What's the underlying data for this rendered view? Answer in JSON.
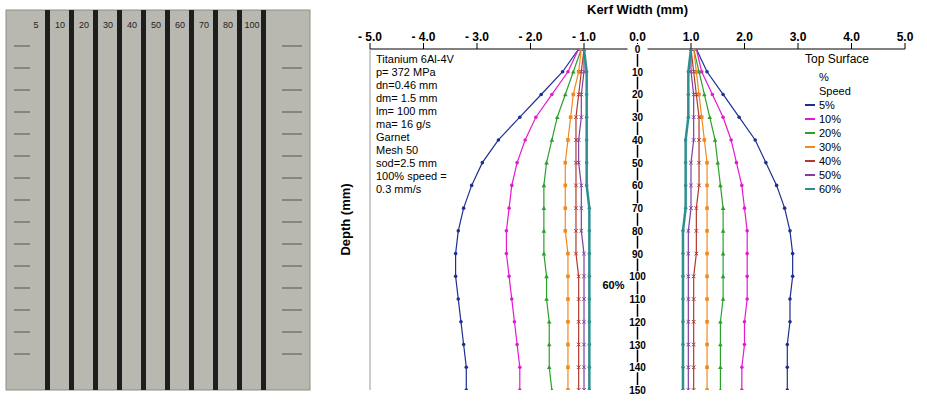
{
  "chart_data": {
    "type": "line",
    "x_label": "Kerf Width (mm)",
    "y_label": "Depth (mm)",
    "xlim": [
      -5,
      5
    ],
    "xticks": [
      {
        "value": -5,
        "label": "- 5.0"
      },
      {
        "value": -4,
        "label": "- 4.0"
      },
      {
        "value": -3,
        "label": "- 3.0"
      },
      {
        "value": -2,
        "label": "- 2.0"
      },
      {
        "value": -1,
        "label": "- 1.0"
      },
      {
        "value": 0,
        "label": "0.0"
      },
      {
        "value": 1,
        "label": "1.0"
      },
      {
        "value": 2,
        "label": "2.0"
      },
      {
        "value": 3,
        "label": "3.0"
      },
      {
        "value": 4,
        "label": "4.0"
      },
      {
        "value": 5,
        "label": "5.0"
      }
    ],
    "ylim": [
      0,
      150
    ],
    "yticks": [
      0,
      10,
      20,
      30,
      40,
      50,
      60,
      70,
      80,
      90,
      100,
      110,
      120,
      130,
      140,
      150
    ],
    "grid": false,
    "legend": "upper right",
    "text_box": [
      "Titanium 6Al-4V",
      "p= 372 MPa",
      "dn=0.46 mm",
      "dm= 1.5 mm",
      "lm= 100 mm",
      "ma= 16 g/s",
      "Garnet",
      "Mesh 50",
      "sod=2.5 mm",
      "100% speed =",
      "0.3 mm/s"
    ],
    "top_label": "Top Surface",
    "legend_title": [
      "%",
      "Speed"
    ],
    "annotations": [
      {
        "text": "60%",
        "x": -0.45,
        "y": 104
      }
    ],
    "depth": [
      0,
      10,
      20,
      30,
      40,
      50,
      60,
      70,
      80,
      90,
      100,
      110,
      120,
      130,
      140,
      150
    ],
    "series": [
      {
        "name": "5%",
        "color": "#1f2f8f",
        "marker": "circle",
        "left": [
          -1.1,
          -1.4,
          -1.8,
          -2.2,
          -2.6,
          -2.9,
          -3.1,
          -3.25,
          -3.35,
          -3.4,
          -3.4,
          -3.35,
          -3.3,
          -3.25,
          -3.2,
          -3.2
        ],
        "right": [
          1.1,
          1.3,
          1.6,
          1.9,
          2.2,
          2.4,
          2.6,
          2.75,
          2.85,
          2.9,
          2.9,
          2.85,
          2.85,
          2.8,
          2.8,
          2.8
        ]
      },
      {
        "name": "10%",
        "color": "#e31ad0",
        "marker": "circle",
        "left": [
          -1.1,
          -1.3,
          -1.6,
          -1.9,
          -2.1,
          -2.25,
          -2.35,
          -2.4,
          -2.45,
          -2.45,
          -2.4,
          -2.35,
          -2.3,
          -2.25,
          -2.2,
          -2.2
        ],
        "right": [
          1.1,
          1.2,
          1.4,
          1.6,
          1.75,
          1.85,
          1.95,
          2.0,
          2.05,
          2.05,
          2.05,
          2.05,
          2.0,
          2.0,
          1.95,
          1.95
        ]
      },
      {
        "name": "20%",
        "color": "#2ca02c",
        "marker": "triangle",
        "left": [
          -1.05,
          -1.2,
          -1.35,
          -1.5,
          -1.6,
          -1.7,
          -1.75,
          -1.75,
          -1.75,
          -1.75,
          -1.7,
          -1.7,
          -1.65,
          -1.65,
          -1.65,
          -1.6
        ],
        "right": [
          1.05,
          1.15,
          1.25,
          1.35,
          1.45,
          1.5,
          1.55,
          1.6,
          1.6,
          1.6,
          1.6,
          1.6,
          1.55,
          1.55,
          1.55,
          1.55
        ]
      },
      {
        "name": "30%",
        "color": "#f08a1c",
        "marker": "square",
        "left": [
          -1.05,
          -1.1,
          -1.2,
          -1.25,
          -1.3,
          -1.35,
          -1.35,
          -1.35,
          -1.35,
          -1.3,
          -1.3,
          -1.3,
          -1.3,
          -1.3,
          -1.3,
          -1.3
        ],
        "right": [
          1.05,
          1.1,
          1.15,
          1.2,
          1.25,
          1.3,
          1.3,
          1.3,
          1.3,
          1.3,
          1.3,
          1.3,
          1.3,
          1.3,
          1.3,
          1.3
        ]
      },
      {
        "name": "40%",
        "color": "#b03a2e",
        "marker": "x",
        "left": [
          -1.0,
          -1.05,
          -1.1,
          -1.15,
          -1.15,
          -1.15,
          -1.15,
          -1.15,
          -1.15,
          -1.15,
          -1.1,
          -1.1,
          -1.1,
          -1.1,
          -1.1,
          -1.1
        ],
        "right": [
          1.0,
          1.05,
          1.1,
          1.15,
          1.15,
          1.15,
          1.15,
          1.1,
          1.1,
          1.1,
          1.05,
          1.05,
          1.05,
          1.05,
          1.05,
          1.05
        ]
      },
      {
        "name": "50%",
        "color": "#7f3f9f",
        "marker": "x",
        "left": [
          -1.0,
          -1.0,
          -1.05,
          -1.05,
          -1.1,
          -1.1,
          -1.05,
          -1.05,
          -1.05,
          -1.0,
          -1.0,
          -1.0,
          -1.0,
          -1.0,
          -1.0,
          -1.0
        ],
        "right": [
          1.0,
          1.0,
          1.05,
          1.05,
          1.05,
          1.0,
          1.0,
          1.0,
          0.95,
          0.95,
          0.95,
          0.95,
          0.95,
          0.95,
          0.95,
          0.95
        ]
      },
      {
        "name": "60%",
        "color": "#2f8f8f",
        "marker": "circle",
        "left": [
          -1.0,
          -0.95,
          -0.95,
          -0.95,
          -0.95,
          -0.95,
          -0.95,
          -0.9,
          -0.9,
          -0.9,
          -0.9,
          -0.9,
          -0.9,
          -0.9,
          -0.9,
          -0.9
        ],
        "right": [
          1.0,
          0.95,
          0.95,
          0.95,
          0.9,
          0.9,
          0.9,
          0.9,
          0.85,
          0.85,
          0.85,
          0.85,
          0.85,
          0.85,
          0.85,
          0.85
        ]
      }
    ]
  },
  "photo": {
    "labels": [
      "5",
      "10",
      "20",
      "30",
      "40",
      "50",
      "60",
      "70",
      "80",
      "100"
    ]
  }
}
